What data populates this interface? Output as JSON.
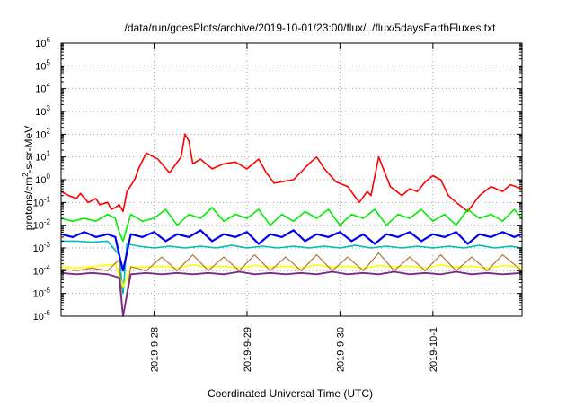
{
  "chart_data": {
    "type": "line",
    "title": "/data/run/goesPlots/archive/2019-10-01/23:00/flux/../flux/5daysEarthFluxes.txt",
    "xlabel": "Coordinated Universal Time (UTC)",
    "ylabel": "protons/cm2-s-sr-MeV",
    "ylabel_parts": {
      "prefix": "protons/cm",
      "sup": "2",
      "suffix": "-s-sr-MeV"
    },
    "y_scale": "log",
    "ylim": [
      1e-06,
      1000000.0
    ],
    "xlim": [
      "2019-09-27T00:00",
      "2019-10-01T23:00"
    ],
    "grid": true,
    "ytick_base": "10",
    "ytick_exponents": [
      "-6",
      "-5",
      "-4",
      "-3",
      "-2",
      "-1",
      "0",
      "1",
      "2",
      "3",
      "4",
      "5",
      "6"
    ],
    "xtick_labels": [
      "2019-9-28",
      "2019-9-29",
      "2019-9-30",
      "2019-10-1"
    ],
    "xtick_dates": [
      "2019-09-28T00:00",
      "2019-09-29T00:00",
      "2019-09-30T00:00",
      "2019-10-01T00:00"
    ],
    "series": [
      {
        "color": "#ff0000",
        "width": 1.6,
        "x": [
          "2019-09-27T00:00",
          "2019-09-27T02:00",
          "2019-09-27T04:00",
          "2019-09-27T05:00",
          "2019-09-27T07:00",
          "2019-09-27T09:00",
          "2019-09-27T10:00",
          "2019-09-27T12:00",
          "2019-09-27T13:00",
          "2019-09-27T14:00",
          "2019-09-27T15:00",
          "2019-09-27T16:00",
          "2019-09-27T17:00",
          "2019-09-27T19:00",
          "2019-09-27T20:00",
          "2019-09-27T22:00",
          "2019-09-28T01:00",
          "2019-09-28T04:00",
          "2019-09-28T07:00",
          "2019-09-28T08:00",
          "2019-09-28T09:00",
          "2019-09-28T10:00",
          "2019-09-28T12:00",
          "2019-09-28T15:00",
          "2019-09-28T18:00",
          "2019-09-28T21:00",
          "2019-09-29T00:00",
          "2019-09-29T03:00",
          "2019-09-29T05:00",
          "2019-09-29T07:00",
          "2019-09-29T12:00",
          "2019-09-29T16:00",
          "2019-09-29T18:00",
          "2019-09-29T20:00",
          "2019-09-29T23:00",
          "2019-09-30T02:00",
          "2019-09-30T05:00",
          "2019-09-30T07:00",
          "2019-09-30T08:00",
          "2019-09-30T10:00",
          "2019-09-30T13:00",
          "2019-09-30T16:00",
          "2019-09-30T18:00",
          "2019-09-30T20:00",
          "2019-09-30T22:00",
          "2019-10-01T00:00",
          "2019-10-01T02:00",
          "2019-10-01T04:00",
          "2019-10-01T06:00",
          "2019-10-01T09:00",
          "2019-10-01T12:00",
          "2019-10-01T15:00",
          "2019-10-01T18:00",
          "2019-10-01T20:00",
          "2019-10-01T23:00"
        ],
        "values": [
          0.3,
          0.2,
          0.15,
          0.25,
          0.1,
          0.15,
          0.08,
          0.1,
          0.05,
          0.06,
          0.08,
          0.04,
          0.3,
          1,
          3,
          15,
          8,
          2,
          10,
          100,
          50,
          5,
          8,
          3,
          5,
          6,
          3,
          8,
          2,
          0.7,
          1,
          5,
          10,
          3,
          0.8,
          0.5,
          0.1,
          0.3,
          0.2,
          10,
          0.5,
          0.2,
          0.4,
          0.3,
          0.8,
          1.5,
          1,
          0.2,
          0.1,
          0.04,
          0.2,
          0.5,
          0.3,
          0.6,
          0.4
        ]
      },
      {
        "color": "#00ee00",
        "width": 1.6,
        "x": [
          "2019-09-27T00:00",
          "2019-09-27T03:00",
          "2019-09-27T06:00",
          "2019-09-27T09:00",
          "2019-09-27T12:00",
          "2019-09-27T14:00",
          "2019-09-27T15:00",
          "2019-09-27T16:00",
          "2019-09-27T18:00",
          "2019-09-27T21:00",
          "2019-09-28T00:00",
          "2019-09-28T03:00",
          "2019-09-28T06:00",
          "2019-09-28T09:00",
          "2019-09-28T12:00",
          "2019-09-28T15:00",
          "2019-09-28T18:00",
          "2019-09-28T21:00",
          "2019-09-29T00:00",
          "2019-09-29T03:00",
          "2019-09-29T06:00",
          "2019-09-29T09:00",
          "2019-09-29T12:00",
          "2019-09-29T15:00",
          "2019-09-29T18:00",
          "2019-09-29T21:00",
          "2019-09-30T00:00",
          "2019-09-30T03:00",
          "2019-09-30T06:00",
          "2019-09-30T09:00",
          "2019-09-30T12:00",
          "2019-09-30T15:00",
          "2019-09-30T18:00",
          "2019-09-30T21:00",
          "2019-10-01T00:00",
          "2019-10-01T03:00",
          "2019-10-01T06:00",
          "2019-10-01T09:00",
          "2019-10-01T12:00",
          "2019-10-01T15:00",
          "2019-10-01T18:00",
          "2019-10-01T21:00",
          "2019-10-01T23:00"
        ],
        "values": [
          0.02,
          0.015,
          0.02,
          0.015,
          0.03,
          0.02,
          0.005,
          0.002,
          0.03,
          0.015,
          0.02,
          0.05,
          0.01,
          0.03,
          0.02,
          0.06,
          0.015,
          0.03,
          0.02,
          0.05,
          0.01,
          0.03,
          0.015,
          0.04,
          0.02,
          0.05,
          0.01,
          0.03,
          0.02,
          0.05,
          0.01,
          0.03,
          0.02,
          0.05,
          0.015,
          0.03,
          0.01,
          0.05,
          0.02,
          0.03,
          0.015,
          0.05,
          0.02
        ]
      },
      {
        "color": "#00bbbb",
        "width": 1.6,
        "x": [
          "2019-09-27T00:00",
          "2019-09-27T04:00",
          "2019-09-27T08:00",
          "2019-09-27T12:00",
          "2019-09-27T15:00",
          "2019-09-27T16:00",
          "2019-09-27T17:00",
          "2019-09-27T20:00",
          "2019-09-28T00:00",
          "2019-09-28T04:00",
          "2019-09-28T08:00",
          "2019-09-28T12:00",
          "2019-09-28T16:00",
          "2019-09-28T20:00",
          "2019-09-29T00:00",
          "2019-09-29T04:00",
          "2019-09-29T08:00",
          "2019-09-29T12:00",
          "2019-09-29T16:00",
          "2019-09-29T20:00",
          "2019-09-30T00:00",
          "2019-09-30T04:00",
          "2019-09-30T08:00",
          "2019-09-30T12:00",
          "2019-09-30T16:00",
          "2019-09-30T20:00",
          "2019-10-01T00:00",
          "2019-10-01T04:00",
          "2019-10-01T08:00",
          "2019-10-01T12:00",
          "2019-10-01T16:00",
          "2019-10-01T20:00",
          "2019-10-01T23:00"
        ],
        "values": [
          0.002,
          0.002,
          0.0018,
          0.002,
          0.0005,
          1e-05,
          0.0015,
          0.0012,
          0.001,
          0.0012,
          0.001,
          0.0012,
          0.001,
          0.0013,
          0.001,
          0.0012,
          0.001,
          0.0012,
          0.001,
          0.0012,
          0.001,
          0.0013,
          0.001,
          0.0012,
          0.001,
          0.0012,
          0.001,
          0.0012,
          0.001,
          0.0013,
          0.001,
          0.0012,
          0.001
        ]
      },
      {
        "color": "#0000ee",
        "width": 2.2,
        "x": [
          "2019-09-27T00:00",
          "2019-09-27T03:00",
          "2019-09-27T06:00",
          "2019-09-27T09:00",
          "2019-09-27T12:00",
          "2019-09-27T14:00",
          "2019-09-27T15:00",
          "2019-09-27T16:00",
          "2019-09-27T18:00",
          "2019-09-27T21:00",
          "2019-09-28T00:00",
          "2019-09-28T03:00",
          "2019-09-28T06:00",
          "2019-09-28T09:00",
          "2019-09-28T12:00",
          "2019-09-28T15:00",
          "2019-09-28T18:00",
          "2019-09-28T21:00",
          "2019-09-29T00:00",
          "2019-09-29T03:00",
          "2019-09-29T06:00",
          "2019-09-29T09:00",
          "2019-09-29T12:00",
          "2019-09-29T15:00",
          "2019-09-29T18:00",
          "2019-09-29T21:00",
          "2019-09-30T00:00",
          "2019-09-30T03:00",
          "2019-09-30T06:00",
          "2019-09-30T09:00",
          "2019-09-30T12:00",
          "2019-09-30T15:00",
          "2019-09-30T18:00",
          "2019-09-30T21:00",
          "2019-10-01T00:00",
          "2019-10-01T03:00",
          "2019-10-01T06:00",
          "2019-10-01T09:00",
          "2019-10-01T12:00",
          "2019-10-01T15:00",
          "2019-10-01T18:00",
          "2019-10-01T21:00",
          "2019-10-01T23:00"
        ],
        "values": [
          0.004,
          0.003,
          0.005,
          0.003,
          0.004,
          0.003,
          0.0005,
          0.0001,
          0.004,
          0.003,
          0.005,
          0.002,
          0.004,
          0.003,
          0.006,
          0.002,
          0.004,
          0.003,
          0.005,
          0.0015,
          0.004,
          0.003,
          0.006,
          0.002,
          0.004,
          0.003,
          0.005,
          0.002,
          0.004,
          0.0015,
          0.004,
          0.003,
          0.005,
          0.002,
          0.004,
          0.003,
          0.005,
          0.0015,
          0.004,
          0.003,
          0.005,
          0.003,
          0.004
        ]
      },
      {
        "color": "#ffff00",
        "width": 1.6,
        "x": [
          "2019-09-27T00:00",
          "2019-09-27T04:00",
          "2019-09-27T08:00",
          "2019-09-27T12:00",
          "2019-09-27T14:00",
          "2019-09-27T16:00",
          "2019-09-27T18:00",
          "2019-09-27T22:00",
          "2019-09-28T02:00",
          "2019-09-28T06:00",
          "2019-09-28T10:00",
          "2019-09-28T14:00",
          "2019-09-28T18:00",
          "2019-09-28T22:00",
          "2019-09-29T02:00",
          "2019-09-29T06:00",
          "2019-09-29T10:00",
          "2019-09-29T14:00",
          "2019-09-29T18:00",
          "2019-09-29T22:00",
          "2019-09-30T02:00",
          "2019-09-30T06:00",
          "2019-09-30T10:00",
          "2019-09-30T14:00",
          "2019-09-30T18:00",
          "2019-09-30T22:00",
          "2019-10-01T02:00",
          "2019-10-01T06:00",
          "2019-10-01T10:00",
          "2019-10-01T14:00",
          "2019-10-01T18:00",
          "2019-10-01T23:00"
        ],
        "values": [
          0.00015,
          0.00013,
          0.00015,
          0.00018,
          0.0002,
          2e-05,
          0.00015,
          0.00014,
          0.00016,
          0.00013,
          0.00018,
          0.00014,
          0.00016,
          0.00013,
          0.00017,
          0.00014,
          0.00016,
          0.00013,
          0.00018,
          0.00014,
          0.00016,
          0.00013,
          0.00017,
          0.00014,
          0.00016,
          0.00013,
          0.00018,
          0.00014,
          0.00016,
          0.00013,
          0.00017,
          0.00015
        ]
      },
      {
        "color": "#b0763a",
        "width": 1.2,
        "x": [
          "2019-09-27T00:00",
          "2019-09-27T04:00",
          "2019-09-27T08:00",
          "2019-09-27T12:00",
          "2019-09-27T15:00",
          "2019-09-27T16:00",
          "2019-09-27T18:00",
          "2019-09-27T22:00",
          "2019-09-28T02:00",
          "2019-09-28T06:00",
          "2019-09-28T10:00",
          "2019-09-28T14:00",
          "2019-09-28T18:00",
          "2019-09-28T22:00",
          "2019-09-29T02:00",
          "2019-09-29T06:00",
          "2019-09-29T10:00",
          "2019-09-29T14:00",
          "2019-09-29T18:00",
          "2019-09-29T22:00",
          "2019-09-30T02:00",
          "2019-09-30T06:00",
          "2019-09-30T10:00",
          "2019-09-30T14:00",
          "2019-09-30T18:00",
          "2019-09-30T22:00",
          "2019-10-01T02:00",
          "2019-10-01T06:00",
          "2019-10-01T10:00",
          "2019-10-01T14:00",
          "2019-10-01T18:00",
          "2019-10-01T23:00"
        ],
        "values": [
          0.00012,
          0.0001,
          0.00013,
          0.0001,
          0.0003,
          1e-06,
          0.00015,
          0.0001,
          0.0004,
          0.0001,
          0.0005,
          0.0001,
          0.0004,
          0.0001,
          0.0005,
          0.0001,
          0.0004,
          0.0001,
          0.0005,
          0.0001,
          0.0004,
          0.0001,
          0.0006,
          0.0001,
          0.0004,
          0.0001,
          0.0005,
          0.0001,
          0.0004,
          0.0001,
          0.0005,
          0.0001
        ]
      },
      {
        "color": "#7b2a8c",
        "width": 1.8,
        "x": [
          "2019-09-27T00:00",
          "2019-09-27T04:00",
          "2019-09-27T08:00",
          "2019-09-27T12:00",
          "2019-09-27T15:00",
          "2019-09-27T16:00",
          "2019-09-27T18:00",
          "2019-09-27T22:00",
          "2019-09-28T02:00",
          "2019-09-28T06:00",
          "2019-09-28T10:00",
          "2019-09-28T14:00",
          "2019-09-28T18:00",
          "2019-09-28T22:00",
          "2019-09-29T02:00",
          "2019-09-29T06:00",
          "2019-09-29T10:00",
          "2019-09-29T14:00",
          "2019-09-29T18:00",
          "2019-09-29T22:00",
          "2019-09-30T02:00",
          "2019-09-30T06:00",
          "2019-09-30T10:00",
          "2019-09-30T14:00",
          "2019-09-30T18:00",
          "2019-09-30T22:00",
          "2019-10-01T02:00",
          "2019-10-01T06:00",
          "2019-10-01T10:00",
          "2019-10-01T14:00",
          "2019-10-01T18:00",
          "2019-10-01T23:00"
        ],
        "values": [
          8e-05,
          7e-05,
          8e-05,
          7e-05,
          5e-05,
          1e-06,
          7e-05,
          8e-05,
          7e-05,
          8e-05,
          7e-05,
          8e-05,
          7e-05,
          9e-05,
          7e-05,
          8e-05,
          7e-05,
          8e-05,
          7e-05,
          9e-05,
          7e-05,
          8e-05,
          7e-05,
          9e-05,
          7e-05,
          8e-05,
          7e-05,
          9e-05,
          7e-05,
          8e-05,
          7e-05,
          8e-05
        ]
      }
    ]
  }
}
